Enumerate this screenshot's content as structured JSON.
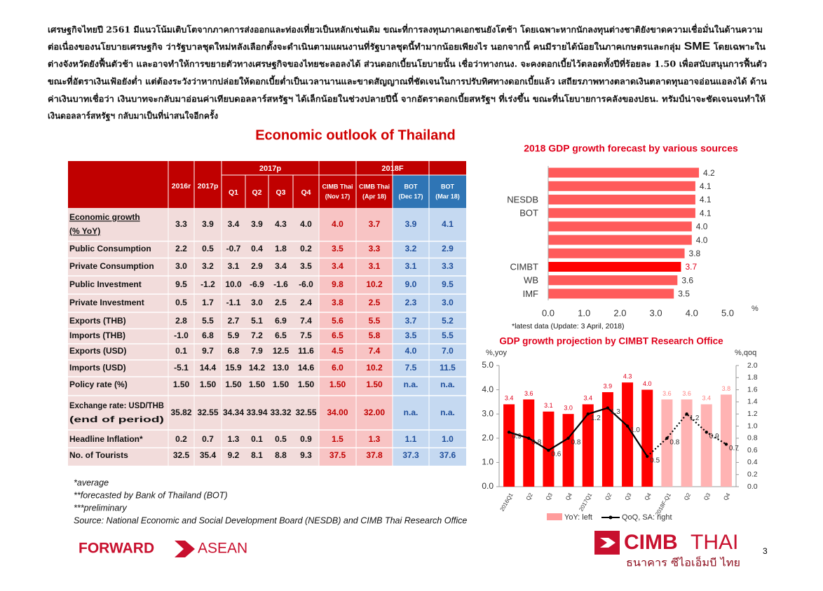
{
  "paragraph": [
    "เศรษฐกิจไทยปี 2561 มีแนวโน้มเติบโตจากภาคการส่งออกและท่องเที่ยวเป็นหลักเช่นเดิม ขณะที่การลงทุนภาคเอกชนยังโตช้า โดยเฉพาะหากนักลงทุนต่างชาติยังขาดความเชื่อมั่นในด้านความ",
    [
      "ต่อเนื่องของนโยบายเศรษฐกิจ ว่ารัฐบาลชุดใหม่หลังเลือกตั้งจะดำเนินตามแผนงานที่รัฐบาลชุดนี้ทำมากน้อยเพียงไร นอกจากนี้ คนมีรายได้น้อยในภาคเกษตรและกลุ่ม ",
      "SME",
      " โดยเฉพาะใน"
    ],
    "ต่างจังหวัดยังฟื้นตัวช้า และอาจทำให้การขยายตัวทางเศรษฐกิจของไทยชะลอลงได้ ส่วนดอกเบี้ยนโยบายนั้น เชื่อว่าทางกนง. จะคงดอกเบี้ยไว้ตลอดทั้งปีที่ร้อยละ 1.50 เพื่อสนับสนุนการฟื้นตัว",
    "ขณะที่อัตราเงินเฟ้อยังต่ำ แต่ต้องระวังว่าหากปล่อยให้ดอกเบี้ยต่ำเป็นเวลานานและขาดสัญญาณที่ชัดเจนในการปรับทิศทางดอกเบี้ยแล้ว เสถียรภาพทางตลาดเงินตลาดทุนอาจอ่อนแอลงได้ ด้าน",
    "ค่าเงินบาทเชื่อว่า เงินบาทจะกลับมาอ่อนค่าเทียบดอลลาร์สหรัฐฯ ได้เล็กน้อยในช่วงปลายปีนี้ จากอัตราดอกเบี้ยสหรัฐฯ ที่เร่งขึ้น ขณะที่นโยบายการคลังของปธน. ทรัมป์น่าจะชัดเจนจนทำให้",
    "เงินดอลลาร์สหรัฐฯ กลับมาเป็นที่น่าสนใจอีกครั้ง"
  ],
  "title": "Economic outlook of Thailand",
  "table": {
    "group_headers": [
      "2017p",
      "2018F"
    ],
    "columns": [
      "2016r",
      "2017p",
      "Q1",
      "Q2",
      "Q3",
      "Q4",
      [
        "CIMB Thai",
        "(Nov 17)"
      ],
      [
        "CIMB Thai",
        "(Apr 18)"
      ],
      [
        "BOT",
        "(Dec 17)"
      ],
      [
        "BOT",
        "(Mar 18)"
      ]
    ],
    "rows": [
      {
        "label": [
          "Economic growth",
          "(% YoY)"
        ],
        "values": [
          "3.3",
          "3.9",
          "3.4",
          "3.9",
          "4.3",
          "4.0",
          "4.0",
          "3.7",
          "3.9",
          "4.1"
        ]
      },
      {
        "label": "Public Consumption",
        "values": [
          "2.2",
          "0.5",
          "-0.7",
          "0.4",
          "1.8",
          "0.2",
          "3.5",
          "3.3",
          "3.2",
          "2.9"
        ]
      },
      {
        "label": "Private Consumption",
        "values": [
          "3.0",
          "3.2",
          "3.1",
          "2.9",
          "3.4",
          "3.5",
          "3.4",
          "3.1",
          "3.1",
          "3.3"
        ]
      },
      {
        "label": "Public Investment",
        "values": [
          "9.5",
          "-1.2",
          "10.0",
          "-6.9",
          "-1.6",
          "-6.0",
          "9.8",
          "10.2",
          "9.0",
          "9.5"
        ]
      },
      {
        "label": "Private Investment",
        "values": [
          "0.5",
          "1.7",
          "-1.1",
          "3.0",
          "2.5",
          "2.4",
          "3.8",
          "2.5",
          "2.3",
          "3.0"
        ]
      },
      {
        "label": "Exports (THB)",
        "values": [
          "2.8",
          "5.5",
          "2.7",
          "5.1",
          "6.9",
          "7.4",
          "5.6",
          "5.5",
          "3.7",
          "5.2"
        ]
      },
      {
        "label": "Imports (THB)",
        "values": [
          "-1.0",
          "6.8",
          "5.9",
          "7.2",
          "6.5",
          "7.5",
          "6.5",
          "5.8",
          "3.5",
          "5.5"
        ]
      },
      {
        "label": "Exports (USD)",
        "values": [
          "0.1",
          "9.7",
          "6.8",
          "7.9",
          "12.5",
          "11.6",
          "4.5",
          "7.4",
          "4.0",
          "7.0"
        ]
      },
      {
        "label": "Imports (USD)",
        "values": [
          "-5.1",
          "14.4",
          "15.9",
          "14.2",
          "13.0",
          "14.6",
          "6.0",
          "10.2",
          "7.5",
          "11.5"
        ]
      },
      {
        "label": "Policy rate (%)",
        "values": [
          "1.50",
          "1.50",
          "1.50",
          "1.50",
          "1.50",
          "1.50",
          "1.50",
          "1.50",
          "n.a.",
          "n.a."
        ]
      },
      {
        "label": [
          "Exchange rate: USD/THB",
          "(end of period)"
        ],
        "values": [
          "35.82",
          "32.55",
          "34.34",
          "33.94",
          "33.32",
          "32.55",
          "34.00",
          "32.00",
          "n.a.",
          "n.a."
        ]
      },
      {
        "label": "Headline Inflation*",
        "values": [
          "0.2",
          "0.7",
          "1.3",
          "0.1",
          "0.5",
          "0.9",
          "1.5",
          "1.3",
          "1.1",
          "1.0"
        ]
      },
      {
        "label": "No. of Tourists",
        "values": [
          "32.5",
          "35.4",
          "9.2",
          "8.1",
          "8.8",
          "9.3",
          "37.5",
          "37.8",
          "37.3",
          "37.6"
        ]
      }
    ]
  },
  "notes": [
    "*average",
    "**forecasted by Bank of Thailand (BOT)",
    "***preliminary",
    "Source: National Economic and Social Development Board (NESDB) and  CIMB Thai Research Office"
  ],
  "chart_data": [
    {
      "type": "hbar",
      "title": "2018 GDP growth forecast by various sources",
      "categories": [
        null,
        null,
        "NESDB",
        "BOT",
        null,
        null,
        null,
        "CIMBT",
        "WB",
        "IMF"
      ],
      "values": [
        4.2,
        4.1,
        4.1,
        4.1,
        4.0,
        4.0,
        3.8,
        3.7,
        3.6,
        3.5
      ],
      "value_labels": [
        "4.2",
        "4.1",
        "4.1",
        "4.1",
        "4.0",
        "4.0",
        "3.8",
        "3.7",
        "3.6",
        "3.5"
      ],
      "colors": [
        "#ff5b5b",
        "#ff5b5b",
        "#ff5b5b",
        "#ff5b5b",
        "#ff5b5b",
        "#ff5b5b",
        "#ff5b5b",
        "#ff0000",
        "#ff5b5b",
        "#ff5b5b"
      ],
      "xlim": [
        0,
        5
      ],
      "xticks": [
        {
          "value": 0,
          "label": "0.0"
        },
        {
          "value": 1,
          "label": "1.0"
        },
        {
          "value": 2,
          "label": "2.0"
        },
        {
          "value": 3,
          "label": "3.0"
        },
        {
          "value": 4,
          "label": "4.0"
        },
        {
          "value": 5,
          "label": "5.0"
        }
      ],
      "x_label": "%",
      "footnote": "*latest data  (Update:  3 April, 2018)"
    },
    {
      "type": "bar_line",
      "title": "GDP growth projection by CIMBT Research Office",
      "y_label": "%,yoy",
      "y2_label": "%,qoq",
      "categories": [
        "2016Q1",
        "Q2",
        "Q3",
        "Q4",
        "2017Q1",
        "Q2",
        "Q3",
        "Q4",
        "2018F-Q1",
        "Q2",
        "Q3",
        "Q4"
      ],
      "series": [
        {
          "name": "YoY: left",
          "color": "#ff9c9c",
          "colors": [
            "#ff0000",
            "#ff0000",
            "#ff0000",
            "#ff0000",
            "#ff0000",
            "#ff0000",
            "#ff0000",
            "#ff0000",
            "#ffb3b3",
            "#ffb3b3",
            "#ffb3b3",
            "#ffb3b3"
          ],
          "values": [
            3.4,
            3.6,
            3.1,
            3.0,
            3.4,
            3.9,
            4.3,
            4.0,
            3.6,
            3.6,
            3.4,
            3.8
          ],
          "value_labels": [
            "3.4",
            "3.6",
            "3.1",
            "3.0",
            "3.4",
            "3.9",
            "4.3",
            "4.0",
            "3.6",
            "3.6",
            "3.4",
            "3.8"
          ]
        },
        {
          "name": "QoQ, SA: right",
          "color": "#000000",
          "axis": "y2",
          "dotted_from": 7,
          "values": [
            0.9,
            0.8,
            0.6,
            0.8,
            1.2,
            1.3,
            1.0,
            0.5,
            0.8,
            1.2,
            0.9,
            0.7
          ],
          "value_labels": [
            "0.9",
            "0.8",
            "0.6",
            "0.8",
            "1.2",
            "1.3",
            "1.0",
            "0.5",
            "0.8",
            "1.2",
            "0.9",
            "0.7"
          ]
        }
      ],
      "ylim": [
        0,
        5
      ],
      "yticks": [
        {
          "value": 0,
          "label": "0.0"
        },
        {
          "value": 1,
          "label": "1.0"
        },
        {
          "value": 2,
          "label": "2.0"
        },
        {
          "value": 3,
          "label": "3.0"
        },
        {
          "value": 4,
          "label": "4.0"
        },
        {
          "value": 5,
          "label": "5.0"
        }
      ],
      "y2lim": [
        0,
        2
      ],
      "y2ticks": [
        {
          "value": 0,
          "label": "0.0"
        },
        0.2,
        0.4,
        0.6,
        0.8,
        {
          "value": 1,
          "label": "1.0"
        },
        1.2,
        1.4,
        1.6,
        1.8,
        {
          "value": 2,
          "label": "2.0"
        }
      ]
    }
  ],
  "footer": {
    "left": [
      "FORWARD",
      "ASEAN"
    ],
    "right": [
      "CIMB",
      "THAI",
      "ธนาคาร ซีไอเอ็มบี ไทย"
    ],
    "page": "3"
  }
}
